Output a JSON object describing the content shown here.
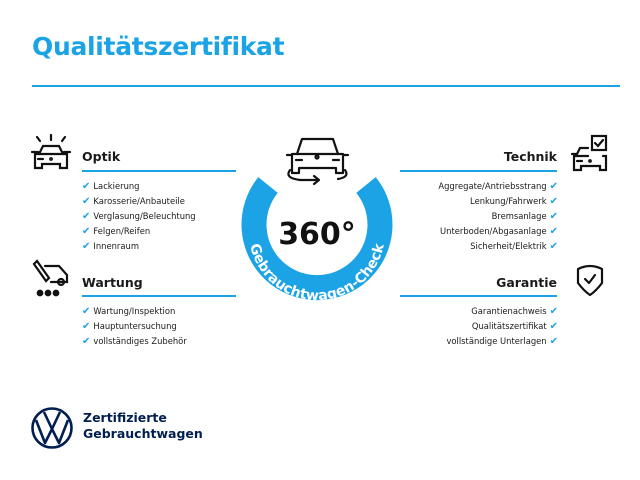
{
  "title": "Qualitätszertifikat",
  "accent_color": "#1ba3e5",
  "center": {
    "value": "360°",
    "ring_text": "Gebrauchtwagen-Check",
    "icon": "car-rotate-icon"
  },
  "sections": {
    "optik": {
      "heading": "Optik",
      "icon": "car-lights-icon",
      "items": [
        "Lackierung",
        "Karosserie/Anbauteile",
        "Verglasung/Beleuchtung",
        "Felgen/Reifen",
        "Innenraum"
      ]
    },
    "wartung": {
      "heading": "Wartung",
      "icon": "service-car-icon",
      "items": [
        "Wartung/Inspektion",
        "Hauptuntersuchung",
        "vollständiges Zubehör"
      ]
    },
    "technik": {
      "heading": "Technik",
      "icon": "car-checkbox-icon",
      "items": [
        "Aggregate/Antriebsstrang",
        "Lenkung/Fahrwerk",
        "Bremsanlage",
        "Unterboden/Abgasanlage",
        "Sicherheit/Elektrik"
      ]
    },
    "garantie": {
      "heading": "Garantie",
      "icon": "shield-check-icon",
      "items": [
        "Garantienachweis",
        "Qualitätszertifikat",
        "vollständige Unterlagen"
      ]
    }
  },
  "check_glyph": "✔",
  "brand": {
    "line1": "Zertifizierte",
    "line2": "Gebrauchtwagen",
    "logo": "vw-logo"
  }
}
